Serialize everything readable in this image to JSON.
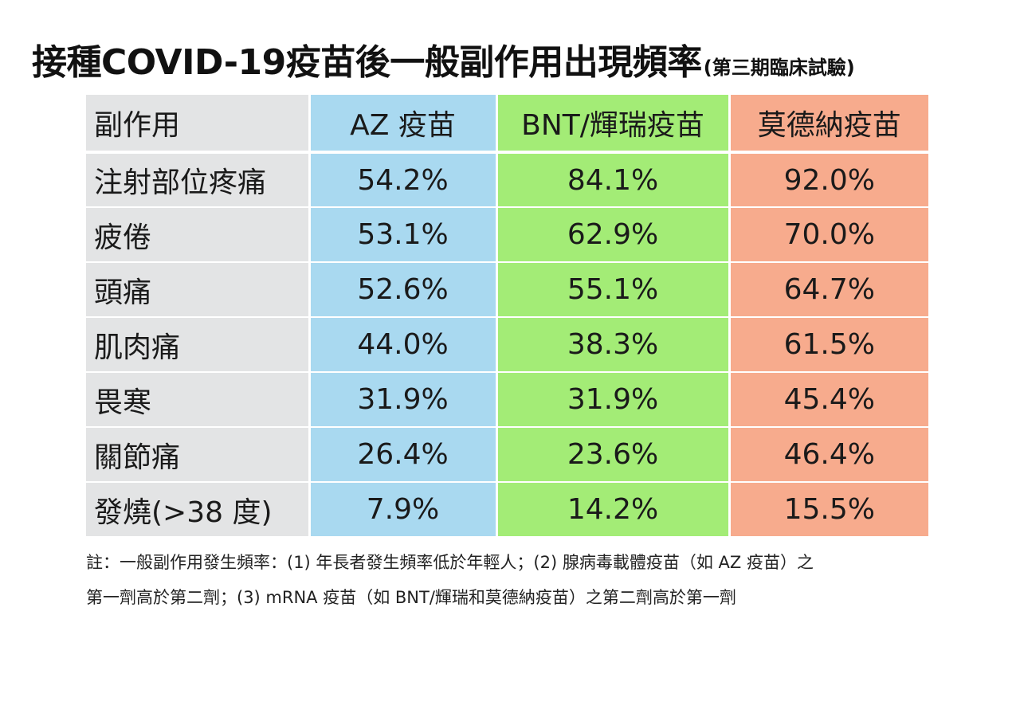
{
  "title": {
    "main": "接種COVID-19疫苗後一般副作用出現頻率",
    "sub": "(第三期臨床試驗)"
  },
  "table": {
    "headers": {
      "label": "副作用",
      "az": "AZ 疫苗",
      "bnt": "BNT/輝瑞疫苗",
      "moderna": "莫德納疫苗"
    },
    "rows": [
      {
        "effect": "注射部位疼痛",
        "az": "54.2%",
        "bnt": "84.1%",
        "moderna": "92.0%"
      },
      {
        "effect": "疲倦",
        "az": "53.1%",
        "bnt": "62.9%",
        "moderna": "70.0%"
      },
      {
        "effect": "頭痛",
        "az": "52.6%",
        "bnt": "55.1%",
        "moderna": "64.7%"
      },
      {
        "effect": "肌肉痛",
        "az": "44.0%",
        "bnt": "38.3%",
        "moderna": "61.5%"
      },
      {
        "effect": "畏寒",
        "az": "31.9%",
        "bnt": "31.9%",
        "moderna": "45.4%"
      },
      {
        "effect": "關節痛",
        "az": "26.4%",
        "bnt": "23.6%",
        "moderna": "46.4%"
      },
      {
        "effect": "發燒(>38 度)",
        "az": "7.9%",
        "bnt": "14.2%",
        "moderna": "15.5%"
      }
    ],
    "colors": {
      "label": "#e3e4e5",
      "az": "#a9d9f0",
      "bnt": "#a3ec76",
      "moderna": "#f7ab8d"
    }
  },
  "note": {
    "line1": "註：一般副作用發生頻率：(1)  年長者發生頻率低於年輕人；(2)  腺病毒載體疫苗（如 AZ 疫苗）之",
    "line2": "第一劑高於第二劑；(3) mRNA 疫苗（如 BNT/輝瑞和莫德納疫苗）之第二劑高於第一劑"
  }
}
